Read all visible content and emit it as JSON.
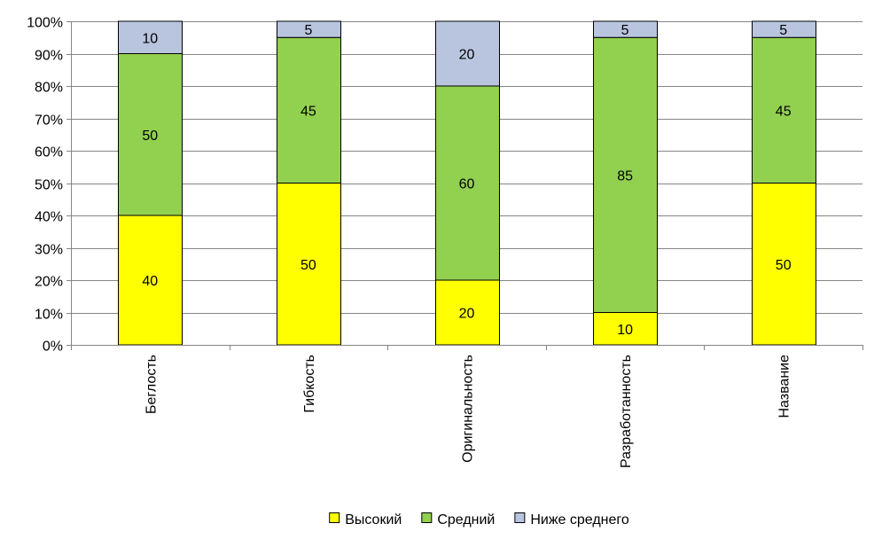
{
  "chart_data": {
    "type": "bar",
    "stacked": true,
    "percent": true,
    "categories": [
      "Беглость",
      "Гибкость",
      "Оригинальность",
      "Разработанность",
      "Название"
    ],
    "series": [
      {
        "name": "Высокий",
        "color": "#FFFF00",
        "values": [
          40,
          50,
          20,
          10,
          50
        ]
      },
      {
        "name": "Средний",
        "color": "#92D050",
        "values": [
          50,
          45,
          60,
          85,
          45
        ]
      },
      {
        "name": "Ниже среднего",
        "color": "#B9C4DF",
        "values": [
          10,
          5,
          20,
          5,
          5
        ]
      }
    ],
    "y_ticks": [
      "0%",
      "10%",
      "20%",
      "30%",
      "40%",
      "50%",
      "60%",
      "70%",
      "80%",
      "90%",
      "100%"
    ],
    "ylim": [
      0,
      100
    ],
    "grid": true,
    "legend_position": "bottom",
    "x_label_rotation": -90
  }
}
